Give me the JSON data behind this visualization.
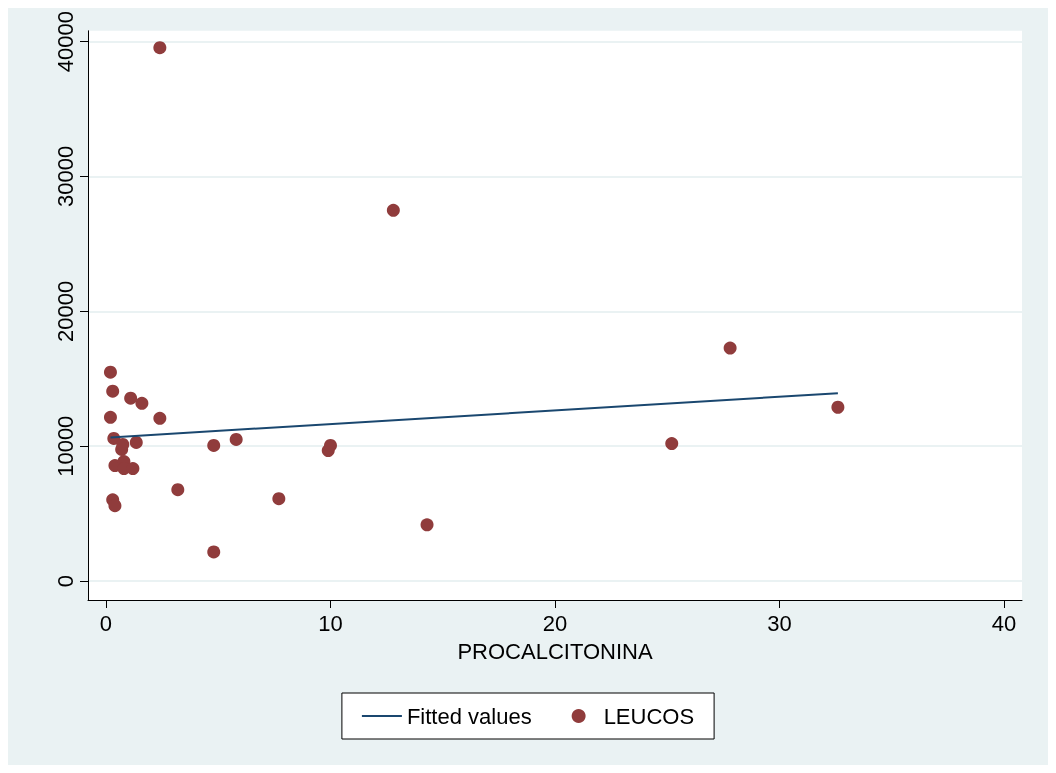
{
  "chart_data": {
    "type": "scatter",
    "xlabel": "PROCALCITONINA",
    "xlim": [
      -0.8,
      40.8
    ],
    "xticks": [
      0,
      10,
      20,
      30,
      40
    ],
    "ylim": [
      -1400,
      40800
    ],
    "yticks": [
      0,
      10000,
      20000,
      30000,
      40000
    ],
    "grid": "y",
    "legend": "bottom",
    "marker": "circle",
    "series": [
      {
        "name": "Fitted values",
        "type": "line",
        "color": "#1a476f",
        "marker": "none",
        "x": [
          0.2,
          32.6
        ],
        "values": [
          10650,
          13930
        ]
      },
      {
        "name": "LEUCOS",
        "type": "scatter",
        "color": "#903c3c",
        "x": [
          2.4,
          12.8,
          27.8,
          32.6,
          25.2,
          14.3,
          7.7,
          4.8,
          3.2,
          5.8,
          4.8,
          9.9,
          10.0,
          2.4,
          1.6,
          1.1,
          0.2,
          0.3,
          0.2,
          0.35,
          0.7,
          0.75,
          1.35,
          0.4,
          0.8,
          0.8,
          1.2,
          0.3,
          0.4
        ],
        "values": [
          39550,
          27490,
          17280,
          12890,
          10200,
          4170,
          6110,
          2160,
          6780,
          10500,
          10060,
          9680,
          10060,
          12070,
          13180,
          13560,
          15490,
          14080,
          12140,
          10580,
          9760,
          10130,
          10280,
          8570,
          8860,
          8340,
          8340,
          6030,
          5590
        ]
      }
    ]
  }
}
